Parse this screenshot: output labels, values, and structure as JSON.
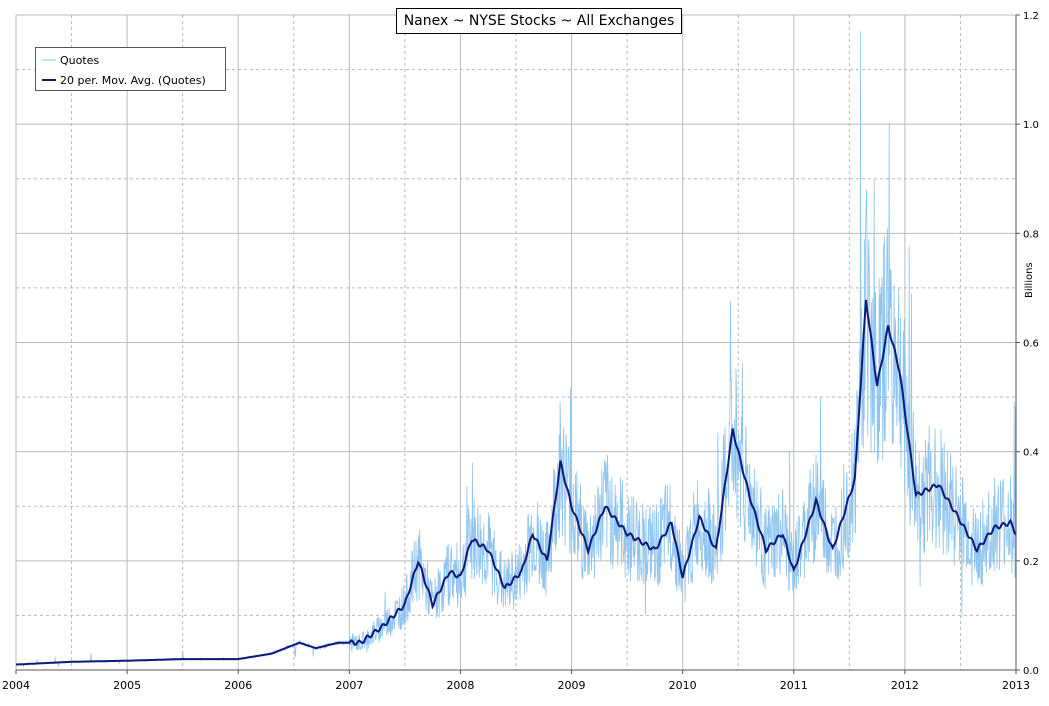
{
  "chart_data": {
    "type": "line",
    "title": "Nanex ~ NYSE Stocks ~ All Exchanges",
    "ylabel": "Billions",
    "xlabel": "",
    "x_ticks": [
      "2004",
      "2005",
      "2006",
      "2007",
      "2008",
      "2009",
      "2010",
      "2011",
      "2012",
      "2013"
    ],
    "y_ticks": [
      "0.0",
      "0.2",
      "0.4",
      "0.6",
      "0.8",
      "1.0",
      "1.2"
    ],
    "ylim": [
      0,
      1.2
    ],
    "xlim": [
      2004,
      2013
    ],
    "grid": true,
    "legend_position": "top-left",
    "y_axis_side": "right",
    "series": [
      {
        "name": "Quotes",
        "color": "#8ec4ef",
        "style": "thin-noisy",
        "peak": {
          "x": 2011.6,
          "y": 1.17
        }
      },
      {
        "name": "20 per. Mov. Avg. (Quotes)",
        "color": "#0b1a7a",
        "style": "thick",
        "points": [
          [
            2004.0,
            0.01
          ],
          [
            2004.5,
            0.015
          ],
          [
            2005.0,
            0.017
          ],
          [
            2005.5,
            0.02
          ],
          [
            2006.0,
            0.02
          ],
          [
            2006.3,
            0.03
          ],
          [
            2006.55,
            0.05
          ],
          [
            2006.7,
            0.04
          ],
          [
            2006.9,
            0.05
          ],
          [
            2007.1,
            0.05
          ],
          [
            2007.3,
            0.08
          ],
          [
            2007.5,
            0.12
          ],
          [
            2007.62,
            0.2
          ],
          [
            2007.75,
            0.12
          ],
          [
            2007.9,
            0.18
          ],
          [
            2008.0,
            0.17
          ],
          [
            2008.1,
            0.24
          ],
          [
            2008.25,
            0.22
          ],
          [
            2008.4,
            0.15
          ],
          [
            2008.55,
            0.18
          ],
          [
            2008.65,
            0.25
          ],
          [
            2008.78,
            0.2
          ],
          [
            2008.9,
            0.38
          ],
          [
            2009.0,
            0.3
          ],
          [
            2009.15,
            0.22
          ],
          [
            2009.3,
            0.3
          ],
          [
            2009.5,
            0.25
          ],
          [
            2009.75,
            0.22
          ],
          [
            2009.9,
            0.27
          ],
          [
            2010.0,
            0.17
          ],
          [
            2010.15,
            0.28
          ],
          [
            2010.3,
            0.22
          ],
          [
            2010.45,
            0.44
          ],
          [
            2010.6,
            0.32
          ],
          [
            2010.75,
            0.22
          ],
          [
            2010.9,
            0.25
          ],
          [
            2011.0,
            0.18
          ],
          [
            2011.2,
            0.31
          ],
          [
            2011.35,
            0.22
          ],
          [
            2011.55,
            0.35
          ],
          [
            2011.65,
            0.68
          ],
          [
            2011.75,
            0.52
          ],
          [
            2011.85,
            0.63
          ],
          [
            2011.95,
            0.55
          ],
          [
            2012.1,
            0.32
          ],
          [
            2012.3,
            0.34
          ],
          [
            2012.45,
            0.29
          ],
          [
            2012.65,
            0.22
          ],
          [
            2012.8,
            0.26
          ],
          [
            2012.95,
            0.27
          ],
          [
            2013.0,
            0.25
          ]
        ]
      }
    ]
  }
}
